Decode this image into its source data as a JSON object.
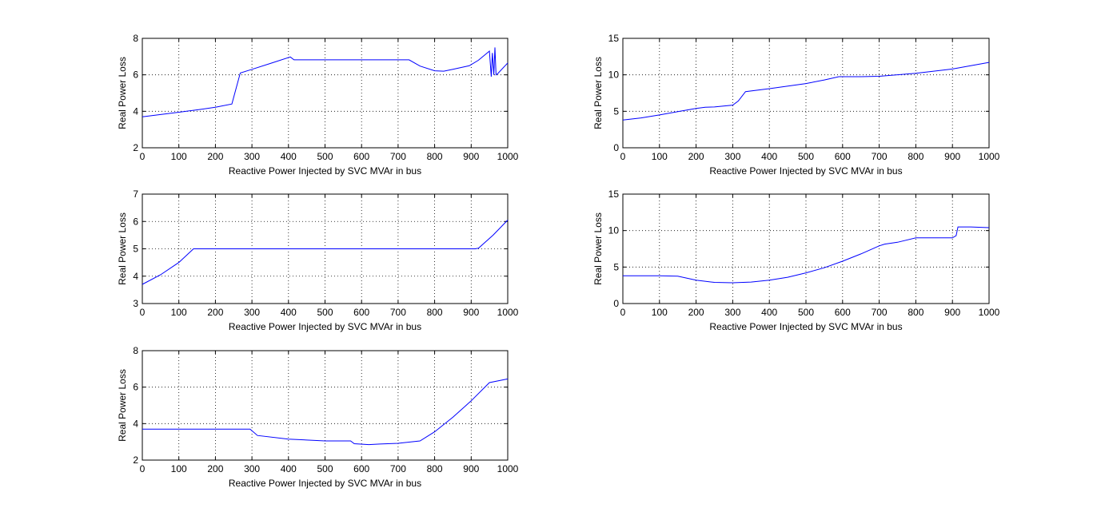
{
  "chart_data": [
    {
      "type": "line",
      "title": "",
      "xlabel": "Reactive Power Injected by SVC MVAr in bus",
      "ylabel": "Real Power Loss",
      "xlim": [
        0,
        1000
      ],
      "ylim": [
        2,
        8
      ],
      "xticks": [
        0,
        100,
        200,
        300,
        400,
        500,
        600,
        700,
        800,
        900,
        1000
      ],
      "yticks": [
        2,
        4,
        6,
        8
      ],
      "grid": true,
      "color": "#0000ff",
      "series": [
        {
          "x": [
            0,
            50,
            100,
            150,
            200,
            245,
            268,
            300,
            350,
            405,
            415,
            500,
            600,
            730,
            760,
            800,
            825,
            850,
            895,
            920,
            950,
            955,
            958,
            962,
            965,
            968,
            972,
            1000
          ],
          "y": [
            3.7,
            3.82,
            3.95,
            4.08,
            4.22,
            4.4,
            6.1,
            6.3,
            6.62,
            6.98,
            6.82,
            6.82,
            6.82,
            6.82,
            6.48,
            6.22,
            6.2,
            6.3,
            6.5,
            6.8,
            7.3,
            5.9,
            7.2,
            6.0,
            7.5,
            6.0,
            6.05,
            6.65
          ]
        }
      ]
    },
    {
      "type": "line",
      "title": "",
      "xlabel": "Reactive Power Injected by SVC MVAr in bus",
      "ylabel": "Real Power Loss",
      "xlim": [
        0,
        1000
      ],
      "ylim": [
        0,
        15
      ],
      "xticks": [
        0,
        100,
        200,
        300,
        400,
        500,
        600,
        700,
        800,
        900,
        1000
      ],
      "yticks": [
        0,
        5,
        10,
        15
      ],
      "grid": true,
      "color": "#0000ff",
      "series": [
        {
          "x": [
            0,
            50,
            100,
            150,
            200,
            225,
            250,
            300,
            315,
            335,
            400,
            500,
            550,
            590,
            650,
            700,
            800,
            900,
            1000
          ],
          "y": [
            3.8,
            4.1,
            4.5,
            4.95,
            5.4,
            5.55,
            5.6,
            5.85,
            6.4,
            7.7,
            8.1,
            8.8,
            9.3,
            9.75,
            9.75,
            9.8,
            10.2,
            10.8,
            11.7
          ]
        }
      ]
    },
    {
      "type": "line",
      "title": "",
      "xlabel": "Reactive Power Injected by SVC MVAr in bus",
      "ylabel": "Real Power Loss",
      "xlim": [
        0,
        1000
      ],
      "ylim": [
        3,
        7
      ],
      "xticks": [
        0,
        100,
        200,
        300,
        400,
        500,
        600,
        700,
        800,
        900,
        1000
      ],
      "yticks": [
        3,
        4,
        5,
        6,
        7
      ],
      "grid": true,
      "color": "#0000ff",
      "series": [
        {
          "x": [
            0,
            50,
            100,
            140,
            150,
            300,
            500,
            700,
            910,
            920,
            960,
            1000
          ],
          "y": [
            3.7,
            4.05,
            4.5,
            5.0,
            5.0,
            5.0,
            5.0,
            5.0,
            5.0,
            5.02,
            5.5,
            6.05
          ]
        }
      ]
    },
    {
      "type": "line",
      "title": "",
      "xlabel": "Reactive Power Injected by SVC MVAr in bus",
      "ylabel": "Real Power Loss",
      "xlim": [
        0,
        1000
      ],
      "ylim": [
        0,
        15
      ],
      "xticks": [
        0,
        100,
        200,
        300,
        400,
        500,
        600,
        700,
        800,
        900,
        1000
      ],
      "yticks": [
        0,
        5,
        10,
        15
      ],
      "grid": true,
      "color": "#0000ff",
      "series": [
        {
          "x": [
            0,
            100,
            150,
            200,
            250,
            300,
            350,
            400,
            450,
            500,
            550,
            600,
            650,
            700,
            715,
            750,
            800,
            850,
            900,
            910,
            915,
            950,
            1000
          ],
          "y": [
            3.8,
            3.8,
            3.75,
            3.2,
            2.9,
            2.85,
            2.95,
            3.2,
            3.6,
            4.2,
            4.9,
            5.8,
            6.8,
            7.9,
            8.15,
            8.4,
            9.0,
            9.0,
            9.0,
            9.3,
            10.5,
            10.5,
            10.4
          ]
        }
      ]
    },
    {
      "type": "line",
      "title": "",
      "xlabel": "Reactive Power Injected by SVC MVAr in bus",
      "ylabel": "Real Power Loss",
      "xlim": [
        0,
        1000
      ],
      "ylim": [
        2,
        8
      ],
      "xticks": [
        0,
        100,
        200,
        300,
        400,
        500,
        600,
        700,
        800,
        900,
        1000
      ],
      "yticks": [
        2,
        4,
        6,
        8
      ],
      "grid": true,
      "color": "#0000ff",
      "series": [
        {
          "x": [
            0,
            100,
            200,
            295,
            315,
            400,
            500,
            570,
            580,
            620,
            650,
            700,
            760,
            800,
            850,
            900,
            950,
            1000
          ],
          "y": [
            3.7,
            3.7,
            3.7,
            3.7,
            3.35,
            3.15,
            3.05,
            3.05,
            2.9,
            2.85,
            2.88,
            2.92,
            3.05,
            3.55,
            4.35,
            5.25,
            6.25,
            6.45
          ]
        }
      ]
    }
  ]
}
